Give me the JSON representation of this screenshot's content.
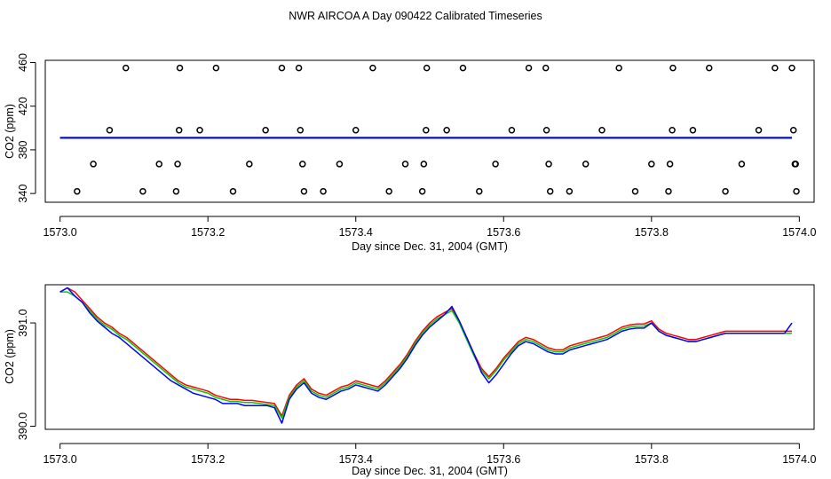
{
  "title": "NWR AIRCOA A  Day 090422  Calibrated Timeseries",
  "chart_data": [
    {
      "type": "scatter+line",
      "name": "top-panel",
      "xlabel": "Day since Dec. 31, 2004 (GMT)",
      "ylabel": "CO2 (ppm)",
      "xlim": [
        1572.98,
        1574.02
      ],
      "ylim": [
        332,
        462
      ],
      "xticks": [
        1573.0,
        1573.2,
        1573.4,
        1573.6,
        1573.8,
        1574.0
      ],
      "xtick_labels": [
        "1573.0",
        "1573.2",
        "1573.4",
        "1573.6",
        "1573.8",
        "1574.0"
      ],
      "yticks": [
        340,
        380,
        420,
        460
      ],
      "ytick_labels": [
        "340",
        "380",
        "420",
        "460"
      ],
      "points": [
        [
          1573.089,
          455
        ],
        [
          1573.162,
          455
        ],
        [
          1573.211,
          455
        ],
        [
          1573.3,
          455
        ],
        [
          1573.323,
          455
        ],
        [
          1573.423,
          455
        ],
        [
          1573.496,
          455
        ],
        [
          1573.545,
          455
        ],
        [
          1573.634,
          455
        ],
        [
          1573.657,
          455
        ],
        [
          1573.756,
          455
        ],
        [
          1573.829,
          455
        ],
        [
          1573.878,
          455
        ],
        [
          1573.967,
          455
        ],
        [
          1573.99,
          455
        ],
        [
          1573.067,
          398
        ],
        [
          1573.161,
          398
        ],
        [
          1573.189,
          398
        ],
        [
          1573.278,
          398
        ],
        [
          1573.325,
          398
        ],
        [
          1573.4,
          398
        ],
        [
          1573.495,
          398
        ],
        [
          1573.523,
          398
        ],
        [
          1573.611,
          398
        ],
        [
          1573.658,
          398
        ],
        [
          1573.733,
          398
        ],
        [
          1573.828,
          398
        ],
        [
          1573.856,
          398
        ],
        [
          1573.945,
          398
        ],
        [
          1573.992,
          398
        ],
        [
          1573.045,
          367
        ],
        [
          1573.134,
          367
        ],
        [
          1573.159,
          367
        ],
        [
          1573.256,
          367
        ],
        [
          1573.328,
          367
        ],
        [
          1573.378,
          367
        ],
        [
          1573.467,
          367
        ],
        [
          1573.492,
          367
        ],
        [
          1573.589,
          367
        ],
        [
          1573.661,
          367
        ],
        [
          1573.711,
          367
        ],
        [
          1573.8,
          367
        ],
        [
          1573.825,
          367
        ],
        [
          1573.922,
          367
        ],
        [
          1573.994,
          367
        ],
        [
          1573.995,
          367
        ],
        [
          1573.023,
          342
        ],
        [
          1573.112,
          342
        ],
        [
          1573.157,
          342
        ],
        [
          1573.234,
          342
        ],
        [
          1573.33,
          342
        ],
        [
          1573.356,
          342
        ],
        [
          1573.445,
          342
        ],
        [
          1573.49,
          342
        ],
        [
          1573.567,
          342
        ],
        [
          1573.663,
          342
        ],
        [
          1573.689,
          342
        ],
        [
          1573.778,
          342
        ],
        [
          1573.823,
          342
        ],
        [
          1573.9,
          342
        ],
        [
          1573.996,
          342
        ]
      ],
      "series": [
        {
          "name": "red",
          "color": "#ff0000",
          "x": [
            1573.0,
            1573.99
          ],
          "y": [
            391,
            391
          ]
        },
        {
          "name": "green",
          "color": "#00cd00",
          "x": [
            1573.0,
            1573.99
          ],
          "y": [
            391,
            391
          ]
        },
        {
          "name": "blue",
          "color": "#0000ff",
          "x": [
            1573.0,
            1573.99
          ],
          "y": [
            391,
            391
          ]
        }
      ]
    },
    {
      "type": "line",
      "name": "bottom-panel",
      "xlabel": "Day since Dec. 31, 2004 (GMT)",
      "ylabel": "CO2 (ppm)",
      "xlim": [
        1572.98,
        1574.02
      ],
      "ylim": [
        389.97,
        391.37
      ],
      "xticks": [
        1573.0,
        1573.2,
        1573.4,
        1573.6,
        1573.8,
        1574.0
      ],
      "xtick_labels": [
        "1573.0",
        "1573.2",
        "1573.4",
        "1573.6",
        "1573.8",
        "1574.0"
      ],
      "yticks": [
        390.0,
        391.0
      ],
      "ytick_labels": [
        "390.0",
        "391.0"
      ],
      "series": [
        {
          "name": "red",
          "color": "#ff0000",
          "x": [
            1573.0,
            1573.01,
            1573.02,
            1573.03,
            1573.04,
            1573.05,
            1573.06,
            1573.07,
            1573.08,
            1573.09,
            1573.1,
            1573.11,
            1573.12,
            1573.13,
            1573.14,
            1573.15,
            1573.16,
            1573.17,
            1573.18,
            1573.19,
            1573.2,
            1573.21,
            1573.22,
            1573.23,
            1573.24,
            1573.25,
            1573.26,
            1573.27,
            1573.28,
            1573.29,
            1573.3,
            1573.31,
            1573.32,
            1573.33,
            1573.34,
            1573.35,
            1573.36,
            1573.37,
            1573.38,
            1573.39,
            1573.4,
            1573.41,
            1573.42,
            1573.43,
            1573.44,
            1573.45,
            1573.46,
            1573.47,
            1573.48,
            1573.49,
            1573.5,
            1573.51,
            1573.52,
            1573.53,
            1573.54,
            1573.55,
            1573.56,
            1573.57,
            1573.58,
            1573.59,
            1573.6,
            1573.61,
            1573.62,
            1573.63,
            1573.64,
            1573.65,
            1573.66,
            1573.67,
            1573.68,
            1573.69,
            1573.7,
            1573.71,
            1573.72,
            1573.73,
            1573.74,
            1573.75,
            1573.76,
            1573.77,
            1573.78,
            1573.79,
            1573.8,
            1573.81,
            1573.82,
            1573.83,
            1573.84,
            1573.85,
            1573.86,
            1573.87,
            1573.88,
            1573.89,
            1573.9,
            1573.91,
            1573.92,
            1573.93,
            1573.94,
            1573.95,
            1573.96,
            1573.97,
            1573.98,
            1573.99
          ],
          "y": [
            391.3,
            391.34,
            391.3,
            391.22,
            391.14,
            391.06,
            391.0,
            390.96,
            390.9,
            390.86,
            390.8,
            390.74,
            390.68,
            390.62,
            390.56,
            390.5,
            390.44,
            390.4,
            390.38,
            390.36,
            390.34,
            390.3,
            390.28,
            390.26,
            390.26,
            390.25,
            390.25,
            390.24,
            390.23,
            390.22,
            390.1,
            390.3,
            390.4,
            390.46,
            390.36,
            390.32,
            390.3,
            390.34,
            390.38,
            390.4,
            390.44,
            390.42,
            390.4,
            390.38,
            390.44,
            390.52,
            390.6,
            390.7,
            390.82,
            390.92,
            391.0,
            391.06,
            391.1,
            391.14,
            391.02,
            390.86,
            390.7,
            390.56,
            390.48,
            390.56,
            390.66,
            390.74,
            390.82,
            390.86,
            390.84,
            390.8,
            390.76,
            390.74,
            390.74,
            390.78,
            390.8,
            390.82,
            390.84,
            390.86,
            390.88,
            390.92,
            390.96,
            390.98,
            390.99,
            390.99,
            391.02,
            390.94,
            390.9,
            390.88,
            390.86,
            390.84,
            390.84,
            390.86,
            390.88,
            390.9,
            390.92,
            390.92,
            390.92,
            390.92,
            390.92,
            390.92,
            390.92,
            390.92,
            390.92,
            390.92
          ]
        },
        {
          "name": "green",
          "color": "#00cd00",
          "x": [
            1573.0,
            1573.01,
            1573.02,
            1573.03,
            1573.04,
            1573.05,
            1573.06,
            1573.07,
            1573.08,
            1573.09,
            1573.1,
            1573.11,
            1573.12,
            1573.13,
            1573.14,
            1573.15,
            1573.16,
            1573.17,
            1573.18,
            1573.19,
            1573.2,
            1573.21,
            1573.22,
            1573.23,
            1573.24,
            1573.25,
            1573.26,
            1573.27,
            1573.28,
            1573.29,
            1573.3,
            1573.31,
            1573.32,
            1573.33,
            1573.34,
            1573.35,
            1573.36,
            1573.37,
            1573.38,
            1573.39,
            1573.4,
            1573.41,
            1573.42,
            1573.43,
            1573.44,
            1573.45,
            1573.46,
            1573.47,
            1573.48,
            1573.49,
            1573.5,
            1573.51,
            1573.52,
            1573.53,
            1573.54,
            1573.55,
            1573.56,
            1573.57,
            1573.58,
            1573.59,
            1573.6,
            1573.61,
            1573.62,
            1573.63,
            1573.64,
            1573.65,
            1573.66,
            1573.67,
            1573.68,
            1573.69,
            1573.7,
            1573.71,
            1573.72,
            1573.73,
            1573.74,
            1573.75,
            1573.76,
            1573.77,
            1573.78,
            1573.79,
            1573.8,
            1573.81,
            1573.82,
            1573.83,
            1573.84,
            1573.85,
            1573.86,
            1573.87,
            1573.88,
            1573.89,
            1573.9,
            1573.91,
            1573.92,
            1573.93,
            1573.94,
            1573.95,
            1573.96,
            1573.97,
            1573.98,
            1573.99
          ],
          "y": [
            391.3,
            391.3,
            391.26,
            391.2,
            391.12,
            391.04,
            390.98,
            390.94,
            390.88,
            390.84,
            390.78,
            390.72,
            390.66,
            390.6,
            390.54,
            390.48,
            390.42,
            390.38,
            390.36,
            390.34,
            390.32,
            390.28,
            390.26,
            390.24,
            390.24,
            390.23,
            390.23,
            390.22,
            390.21,
            390.2,
            390.08,
            390.28,
            390.38,
            390.44,
            390.34,
            390.3,
            390.28,
            390.32,
            390.36,
            390.38,
            390.42,
            390.4,
            390.38,
            390.36,
            390.42,
            390.5,
            390.58,
            390.68,
            390.8,
            390.9,
            390.98,
            391.04,
            391.08,
            391.12,
            391.0,
            390.84,
            390.68,
            390.54,
            390.46,
            390.54,
            390.64,
            390.72,
            390.8,
            390.84,
            390.82,
            390.78,
            390.74,
            390.72,
            390.72,
            390.76,
            390.78,
            390.8,
            390.82,
            390.84,
            390.86,
            390.9,
            390.94,
            390.96,
            390.97,
            390.97,
            391.0,
            390.92,
            390.88,
            390.86,
            390.84,
            390.82,
            390.82,
            390.84,
            390.86,
            390.88,
            390.9,
            390.9,
            390.9,
            390.9,
            390.9,
            390.9,
            390.9,
            390.9,
            390.9,
            390.9
          ]
        },
        {
          "name": "blue",
          "color": "#0000ff",
          "x": [
            1573.0,
            1573.01,
            1573.02,
            1573.03,
            1573.04,
            1573.05,
            1573.06,
            1573.07,
            1573.08,
            1573.09,
            1573.1,
            1573.11,
            1573.12,
            1573.13,
            1573.14,
            1573.15,
            1573.16,
            1573.17,
            1573.18,
            1573.19,
            1573.2,
            1573.21,
            1573.22,
            1573.23,
            1573.24,
            1573.25,
            1573.26,
            1573.27,
            1573.28,
            1573.29,
            1573.3,
            1573.31,
            1573.32,
            1573.33,
            1573.34,
            1573.35,
            1573.36,
            1573.37,
            1573.38,
            1573.39,
            1573.4,
            1573.41,
            1573.42,
            1573.43,
            1573.44,
            1573.45,
            1573.46,
            1573.47,
            1573.48,
            1573.49,
            1573.5,
            1573.51,
            1573.52,
            1573.53,
            1573.54,
            1573.55,
            1573.56,
            1573.57,
            1573.58,
            1573.59,
            1573.6,
            1573.61,
            1573.62,
            1573.63,
            1573.64,
            1573.65,
            1573.66,
            1573.67,
            1573.68,
            1573.69,
            1573.7,
            1573.71,
            1573.72,
            1573.73,
            1573.74,
            1573.75,
            1573.76,
            1573.77,
            1573.78,
            1573.79,
            1573.8,
            1573.81,
            1573.82,
            1573.83,
            1573.84,
            1573.85,
            1573.86,
            1573.87,
            1573.88,
            1573.89,
            1573.9,
            1573.91,
            1573.92,
            1573.93,
            1573.94,
            1573.95,
            1573.96,
            1573.97,
            1573.98,
            1573.99
          ],
          "y": [
            391.3,
            391.34,
            391.26,
            391.2,
            391.1,
            391.02,
            390.96,
            390.9,
            390.86,
            390.8,
            390.74,
            390.68,
            390.62,
            390.56,
            390.5,
            390.44,
            390.4,
            390.36,
            390.32,
            390.3,
            390.28,
            390.26,
            390.22,
            390.22,
            390.22,
            390.2,
            390.2,
            390.2,
            390.2,
            390.18,
            390.03,
            390.26,
            390.36,
            390.42,
            390.32,
            390.28,
            390.26,
            390.3,
            390.34,
            390.36,
            390.4,
            390.38,
            390.36,
            390.34,
            390.4,
            390.48,
            390.56,
            390.66,
            390.78,
            390.88,
            390.96,
            391.02,
            391.08,
            391.16,
            391.02,
            390.86,
            390.7,
            390.52,
            390.42,
            390.5,
            390.6,
            390.7,
            390.78,
            390.82,
            390.8,
            390.76,
            390.72,
            390.7,
            390.7,
            390.74,
            390.76,
            390.78,
            390.8,
            390.82,
            390.84,
            390.88,
            390.92,
            390.94,
            390.95,
            390.95,
            391.0,
            390.92,
            390.88,
            390.86,
            390.84,
            390.82,
            390.82,
            390.84,
            390.86,
            390.88,
            390.9,
            390.9,
            390.9,
            390.9,
            390.9,
            390.9,
            390.9,
            390.9,
            390.9,
            391.0
          ]
        }
      ]
    }
  ]
}
